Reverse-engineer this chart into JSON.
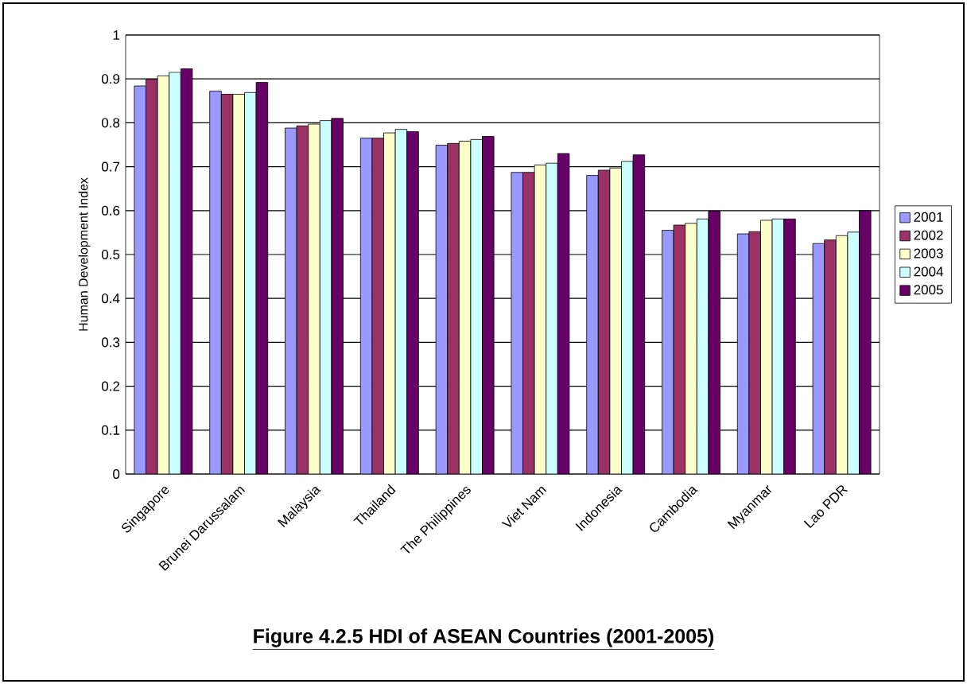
{
  "chart_data": {
    "type": "bar",
    "title": "Figure 4.2.5 HDI of ASEAN Countries (2001-2005)",
    "ylabel": "Human Development Index",
    "categories": [
      "Singapore",
      "Brunei Darussalam",
      "Malaysia",
      "Thailand",
      "The Philippines",
      "Viet Nam",
      "Indonesia",
      "Cambodia",
      "Myanmar",
      "Lao PDR"
    ],
    "series": [
      {
        "name": "2001",
        "color": "#9999ff",
        "values": [
          0.884,
          0.872,
          0.788,
          0.765,
          0.749,
          0.687,
          0.68,
          0.555,
          0.547,
          0.525
        ]
      },
      {
        "name": "2002",
        "color": "#993366",
        "values": [
          0.899,
          0.865,
          0.793,
          0.765,
          0.753,
          0.687,
          0.692,
          0.567,
          0.552,
          0.533
        ]
      },
      {
        "name": "2003",
        "color": "#ffffcc",
        "values": [
          0.907,
          0.865,
          0.797,
          0.777,
          0.758,
          0.704,
          0.697,
          0.571,
          0.578,
          0.543
        ]
      },
      {
        "name": "2004",
        "color": "#ccffff",
        "values": [
          0.915,
          0.869,
          0.805,
          0.785,
          0.762,
          0.708,
          0.712,
          0.581,
          0.581,
          0.551
        ]
      },
      {
        "name": "2005",
        "color": "#660066",
        "values": [
          0.923,
          0.892,
          0.81,
          0.78,
          0.769,
          0.73,
          0.727,
          0.599,
          0.581,
          0.6
        ]
      }
    ],
    "ylim": [
      0,
      1
    ],
    "yticks": [
      0,
      0.1,
      0.2,
      0.3,
      0.4,
      0.5,
      0.6,
      0.7,
      0.8,
      0.9,
      1
    ],
    "grid": "y",
    "legend": "right"
  }
}
